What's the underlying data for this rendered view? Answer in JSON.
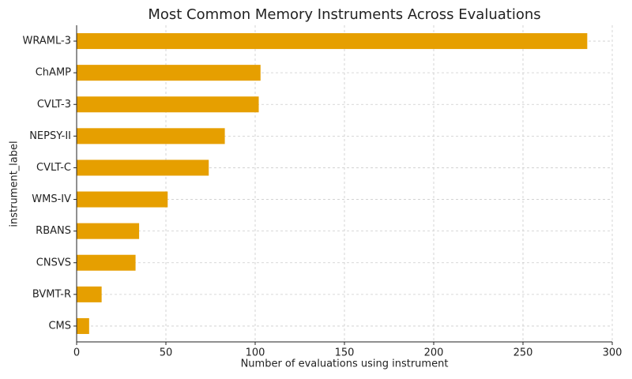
{
  "chart_data": {
    "type": "barh",
    "title": "Most Common Memory Instruments Across Evaluations",
    "x_label": "Number of evaluations using instrument",
    "y_label": "instrument_label",
    "categories": [
      "WRAML-3",
      "ChAMP",
      "CVLT-3",
      "NEPSY-II",
      "CVLT-C",
      "WMS-IV",
      "RBANS",
      "CNSVS",
      "BVMT-R",
      "CMS"
    ],
    "values": [
      286,
      103,
      102,
      83,
      74,
      51,
      35,
      33,
      14,
      7
    ],
    "color": "#e69f00",
    "xlim": [
      0,
      300
    ],
    "xticks": [
      0,
      50,
      100,
      150,
      200,
      250,
      300
    ],
    "grid": true
  }
}
